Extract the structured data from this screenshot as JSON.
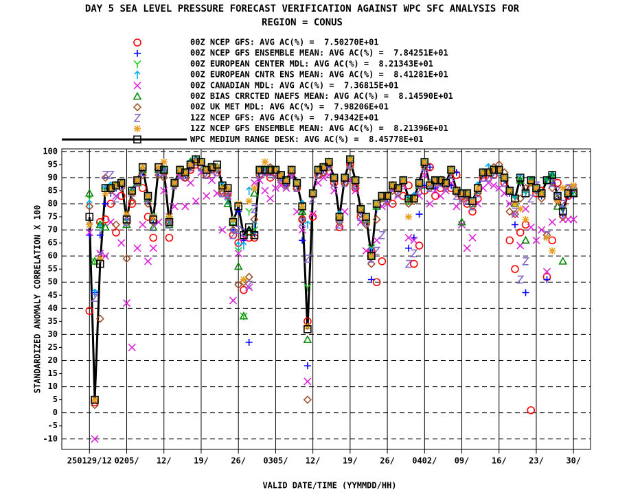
{
  "chart_data": {
    "type": "line",
    "title": "DAY 5 SEA LEVEL PRESSURE FORECAST VERIFICATION AGAINST WPC SFC ANALYSIS FOR",
    "subtitle": "REGION = CONUS",
    "xlabel": "VALID DATE/TIME (YYMMDD/HH)",
    "ylabel": "STANDARDIZED ANOMALY CORRELATION X 100",
    "xlim": [
      -5.2,
      94.2
    ],
    "ylim": [
      -14,
      101
    ],
    "xticks": [
      {
        "value": 0,
        "label": "250129/12"
      },
      {
        "value": 7,
        "label": "0205/"
      },
      {
        "value": 14,
        "label": "12/"
      },
      {
        "value": 21,
        "label": "19/"
      },
      {
        "value": 28,
        "label": "26/"
      },
      {
        "value": 35,
        "label": "0305/"
      },
      {
        "value": 42,
        "label": "12/"
      },
      {
        "value": 49,
        "label": "19/"
      },
      {
        "value": 56,
        "label": "26/"
      },
      {
        "value": 63,
        "label": "0402/"
      },
      {
        "value": 70,
        "label": "09/"
      },
      {
        "value": 77,
        "label": "16/"
      },
      {
        "value": 84,
        "label": "23/"
      },
      {
        "value": 91,
        "label": "30/"
      }
    ],
    "yticks": [
      -10,
      -5,
      0,
      5,
      10,
      15,
      20,
      25,
      30,
      35,
      40,
      45,
      50,
      55,
      60,
      65,
      70,
      75,
      80,
      85,
      90,
      95,
      100
    ],
    "grid": true,
    "x": [
      0,
      1,
      2,
      3,
      4,
      5,
      6,
      7,
      8,
      9,
      10,
      11,
      12,
      13,
      14,
      15,
      16,
      17,
      18,
      19,
      20,
      21,
      22,
      23,
      24,
      25,
      26,
      27,
      28,
      29,
      30,
      31,
      32,
      33,
      34,
      35,
      36,
      37,
      38,
      39,
      40,
      41,
      42,
      43,
      44,
      45,
      46,
      47,
      48,
      49,
      50,
      51,
      52,
      53,
      54,
      55,
      56,
      57,
      58,
      59,
      60,
      61,
      62,
      63,
      64,
      65,
      66,
      67,
      68,
      69,
      70,
      71,
      72,
      73,
      74,
      75,
      76,
      77,
      78,
      79,
      80,
      81,
      82,
      83,
      84,
      85,
      86,
      87,
      88,
      89,
      90,
      91
    ],
    "series": [
      {
        "name": "00Z NCEP GFS: AVG AC(%) =  7.50270E+01",
        "color": "#ff0000",
        "marker": "circle",
        "values": [
          39,
          4,
          73,
          74,
          80,
          69,
          83,
          73,
          80,
          89,
          86,
          75,
          67,
          93,
          92,
          67,
          88,
          92,
          90,
          93,
          95,
          94,
          91,
          93,
          92,
          85,
          84,
          68,
          65,
          47,
          67,
          67,
          91,
          92,
          90,
          92,
          90,
          88,
          92,
          86,
          74,
          35,
          75,
          91,
          92,
          95,
          88,
          71,
          88,
          95,
          86,
          75,
          73,
          62,
          50,
          58,
          82,
          80,
          86,
          83,
          87,
          57,
          64,
          85,
          94,
          83,
          86,
          88,
          86,
          91,
          83,
          80,
          77,
          82,
          90,
          90,
          91,
          92,
          88,
          66,
          55,
          69,
          72,
          1,
          84,
          85,
          52,
          66,
          88,
          80,
          83,
          84
        ]
      },
      {
        "name": "00Z NCEP GFS ENSEMBLE MEAN: AVG AC(%) =  7.84251E+01",
        "color": "#0000ff",
        "marker": "plus",
        "values": [
          68,
          46,
          68,
          80,
          84,
          86,
          87,
          74,
          83,
          88,
          92,
          81,
          74,
          92,
          92,
          74,
          87,
          92,
          91,
          94,
          96,
          95,
          92,
          93,
          93,
          86,
          85,
          70,
          77,
          66,
          27,
          69,
          92,
          92,
          92,
          92,
          90,
          87,
          92,
          87,
          66,
          18,
          83,
          92,
          93,
          95,
          89,
          74,
          89,
          96,
          88,
          77,
          74,
          51,
          78,
          82,
          82,
          86,
          85,
          88,
          63,
          67,
          76,
          87,
          94,
          86,
          88,
          88,
          87,
          92,
          84,
          83,
          80,
          85,
          91,
          91,
          92,
          92,
          89,
          84,
          72,
          88,
          46,
          88,
          85,
          83,
          51,
          88,
          82,
          76,
          83,
          83
        ]
      },
      {
        "name": "00Z EUROPEAN CENTER MDL: AVG AC(%) =  8.21343E+01",
        "color": "#22cc22",
        "marker": "y",
        "values": [
          82,
          58,
          72,
          85,
          86,
          87,
          88,
          73,
          84,
          88,
          93,
          82,
          75,
          93,
          93,
          74,
          87,
          93,
          92,
          95,
          96,
          95,
          93,
          94,
          94,
          86,
          85,
          73,
          62,
          37,
          77,
          70,
          93,
          93,
          93,
          93,
          91,
          89,
          93,
          88,
          78,
          48,
          84,
          93,
          94,
          96,
          90,
          74,
          90,
          96,
          89,
          78,
          74,
          63,
          79,
          82,
          83,
          87,
          86,
          89,
          81,
          82,
          87,
          95,
          87,
          89,
          89,
          88,
          92,
          85,
          84,
          84,
          81,
          86,
          92,
          92,
          92,
          92,
          90,
          85,
          82,
          89,
          84,
          89,
          86,
          84,
          89,
          90,
          83,
          78,
          84,
          84
        ]
      },
      {
        "name": "00Z EUROPEAN CNTR ENS MEAN: AVG AC(%) =  8.41281E+01",
        "color": "#00aaee",
        "marker": "arrow",
        "values": [
          80,
          46,
          71,
          86,
          87,
          87,
          88,
          75,
          85,
          89,
          93,
          83,
          75,
          93,
          93,
          74,
          88,
          93,
          92,
          96,
          97,
          96,
          93,
          94,
          94,
          87,
          81,
          74,
          64,
          64,
          85,
          72,
          93,
          93,
          93,
          93,
          91,
          89,
          93,
          88,
          80,
          72,
          84,
          93,
          94,
          96,
          90,
          76,
          90,
          97,
          89,
          78,
          75,
          62,
          80,
          83,
          83,
          87,
          86,
          89,
          82,
          83,
          88,
          96,
          88,
          89,
          89,
          88,
          93,
          85,
          84,
          84,
          81,
          87,
          92,
          94,
          93,
          93,
          90,
          85,
          82,
          90,
          84,
          89,
          86,
          84,
          89,
          91,
          83,
          78,
          84,
          85
        ]
      },
      {
        "name": "00Z CANADIAN MDL: AVG AC(%) =  7.36815E+01",
        "color": "#dd22dd",
        "marker": "x",
        "values": [
          69,
          -10,
          61,
          60,
          73,
          83,
          65,
          42,
          25,
          63,
          72,
          58,
          63,
          73,
          85,
          75,
          79,
          90,
          79,
          88,
          81,
          92,
          83,
          89,
          84,
          70,
          83,
          43,
          61,
          67,
          48,
          88,
          89,
          85,
          82,
          86,
          87,
          86,
          90,
          77,
          70,
          12,
          76,
          88,
          90,
          91,
          85,
          72,
          77,
          89,
          85,
          73,
          62,
          61,
          66,
          79,
          80,
          85,
          83,
          87,
          67,
          66,
          83,
          91,
          80,
          85,
          83,
          85,
          88,
          79,
          72,
          63,
          67,
          80,
          86,
          88,
          87,
          86,
          84,
          80,
          76,
          64,
          78,
          71,
          66,
          70,
          54,
          73,
          80,
          74,
          74,
          74
        ]
      },
      {
        "name": "00Z BIAS CRRCTED NAEFS MEAN: AVG AC(%) =  8.14590E+01",
        "color": "#008800",
        "marker": "triangle",
        "values": [
          84,
          58,
          72,
          71,
          86,
          87,
          88,
          72,
          85,
          88,
          93,
          82,
          71,
          93,
          93,
          72,
          88,
          93,
          92,
          96,
          97,
          96,
          93,
          94,
          94,
          86,
          80,
          73,
          56,
          37,
          69,
          84,
          93,
          93,
          93,
          93,
          91,
          89,
          93,
          88,
          77,
          28,
          84,
          93,
          94,
          96,
          90,
          75,
          90,
          97,
          89,
          78,
          74,
          60,
          79,
          82,
          83,
          87,
          86,
          89,
          81,
          82,
          87,
          96,
          87,
          89,
          89,
          88,
          93,
          85,
          73,
          84,
          80,
          85,
          92,
          92,
          93,
          93,
          90,
          85,
          80,
          89,
          66,
          89,
          86,
          84,
          89,
          91,
          79,
          58,
          84,
          84
        ]
      },
      {
        "name": "00Z UK MET MDL: AVG AC(%) =  7.98206E+01",
        "color": "#a0522d",
        "marker": "diamond",
        "values": [
          79,
          3,
          36,
          90,
          85,
          72,
          86,
          59,
          81,
          88,
          91,
          80,
          73,
          91,
          90,
          73,
          87,
          92,
          90,
          94,
          96,
          94,
          91,
          93,
          93,
          84,
          83,
          70,
          49,
          50,
          52,
          74,
          91,
          92,
          94,
          91,
          89,
          87,
          92,
          86,
          74,
          5,
          83,
          91,
          92,
          94,
          89,
          73,
          88,
          94,
          87,
          76,
          72,
          57,
          74,
          82,
          81,
          85,
          84,
          88,
          80,
          81,
          87,
          94,
          86,
          88,
          88,
          87,
          92,
          84,
          82,
          83,
          79,
          84,
          91,
          92,
          94,
          95,
          92,
          77,
          76,
          82,
          86,
          88,
          85,
          82,
          68,
          86,
          82,
          75,
          86,
          86
        ]
      },
      {
        "name": "12Z NCEP GFS: AVG AC(%) =  7.94342E+01",
        "color": "#8866cc",
        "marker": "z",
        "values": [
          71,
          44,
          60,
          91,
          91,
          82,
          87,
          73,
          85,
          88,
          92,
          82,
          71,
          92,
          92,
          72,
          87,
          91,
          91,
          94,
          96,
          94,
          91,
          93,
          92,
          84,
          84,
          68,
          70,
          69,
          49,
          78,
          91,
          92,
          92,
          91,
          90,
          87,
          91,
          86,
          73,
          59,
          82,
          91,
          93,
          95,
          88,
          72,
          88,
          95,
          87,
          75,
          73,
          59,
          62,
          68,
          82,
          86,
          84,
          87,
          57,
          61,
          85,
          94,
          86,
          88,
          88,
          86,
          91,
          83,
          82,
          81,
          79,
          84,
          90,
          90,
          91,
          92,
          88,
          85,
          77,
          51,
          58,
          82,
          87,
          84,
          68,
          88,
          85,
          80,
          86,
          86
        ]
      },
      {
        "name": "12Z NCEP GFS ENSEMBLE MEAN: AVG AC(%) =  8.21396E+01",
        "color": "#e8a020",
        "marker": "asterisk",
        "values": [
          72,
          5,
          59,
          84,
          86,
          87,
          88,
          76,
          84,
          89,
          94,
          83,
          75,
          94,
          96,
          75,
          88,
          93,
          92,
          95,
          96,
          96,
          93,
          94,
          94,
          86,
          86,
          74,
          80,
          51,
          81,
          86,
          93,
          96,
          93,
          93,
          91,
          89,
          93,
          88,
          79,
          33,
          84,
          93,
          94,
          96,
          90,
          75,
          90,
          97,
          89,
          78,
          75,
          60,
          80,
          83,
          83,
          87,
          86,
          89,
          75,
          82,
          88,
          96,
          88,
          89,
          89,
          88,
          93,
          85,
          84,
          84,
          81,
          86,
          92,
          92,
          93,
          93,
          90,
          85,
          80,
          78,
          74,
          88,
          86,
          84,
          67,
          62,
          81,
          86,
          84,
          87
        ]
      },
      {
        "name": "WPC MEDIUM RANGE DESK: AVG AC(%) =  8.45778E+01",
        "color": "#000000",
        "marker": "square",
        "line": true,
        "values": [
          75,
          5,
          57,
          86,
          86,
          87,
          88,
          74,
          85,
          89,
          94,
          83,
          74,
          94,
          93,
          73,
          88,
          93,
          92,
          95,
          97,
          96,
          93,
          94,
          95,
          87,
          86,
          73,
          79,
          68,
          71,
          68,
          93,
          93,
          93,
          93,
          91,
          89,
          93,
          88,
          79,
          32,
          84,
          93,
          94,
          96,
          90,
          75,
          90,
          97,
          89,
          78,
          75,
          60,
          80,
          83,
          83,
          87,
          86,
          89,
          82,
          82,
          88,
          96,
          87,
          89,
          89,
          88,
          93,
          85,
          84,
          84,
          81,
          86,
          92,
          92,
          93,
          93,
          90,
          85,
          82,
          90,
          84,
          89,
          86,
          84,
          89,
          91,
          83,
          77,
          84,
          84
        ]
      }
    ]
  }
}
